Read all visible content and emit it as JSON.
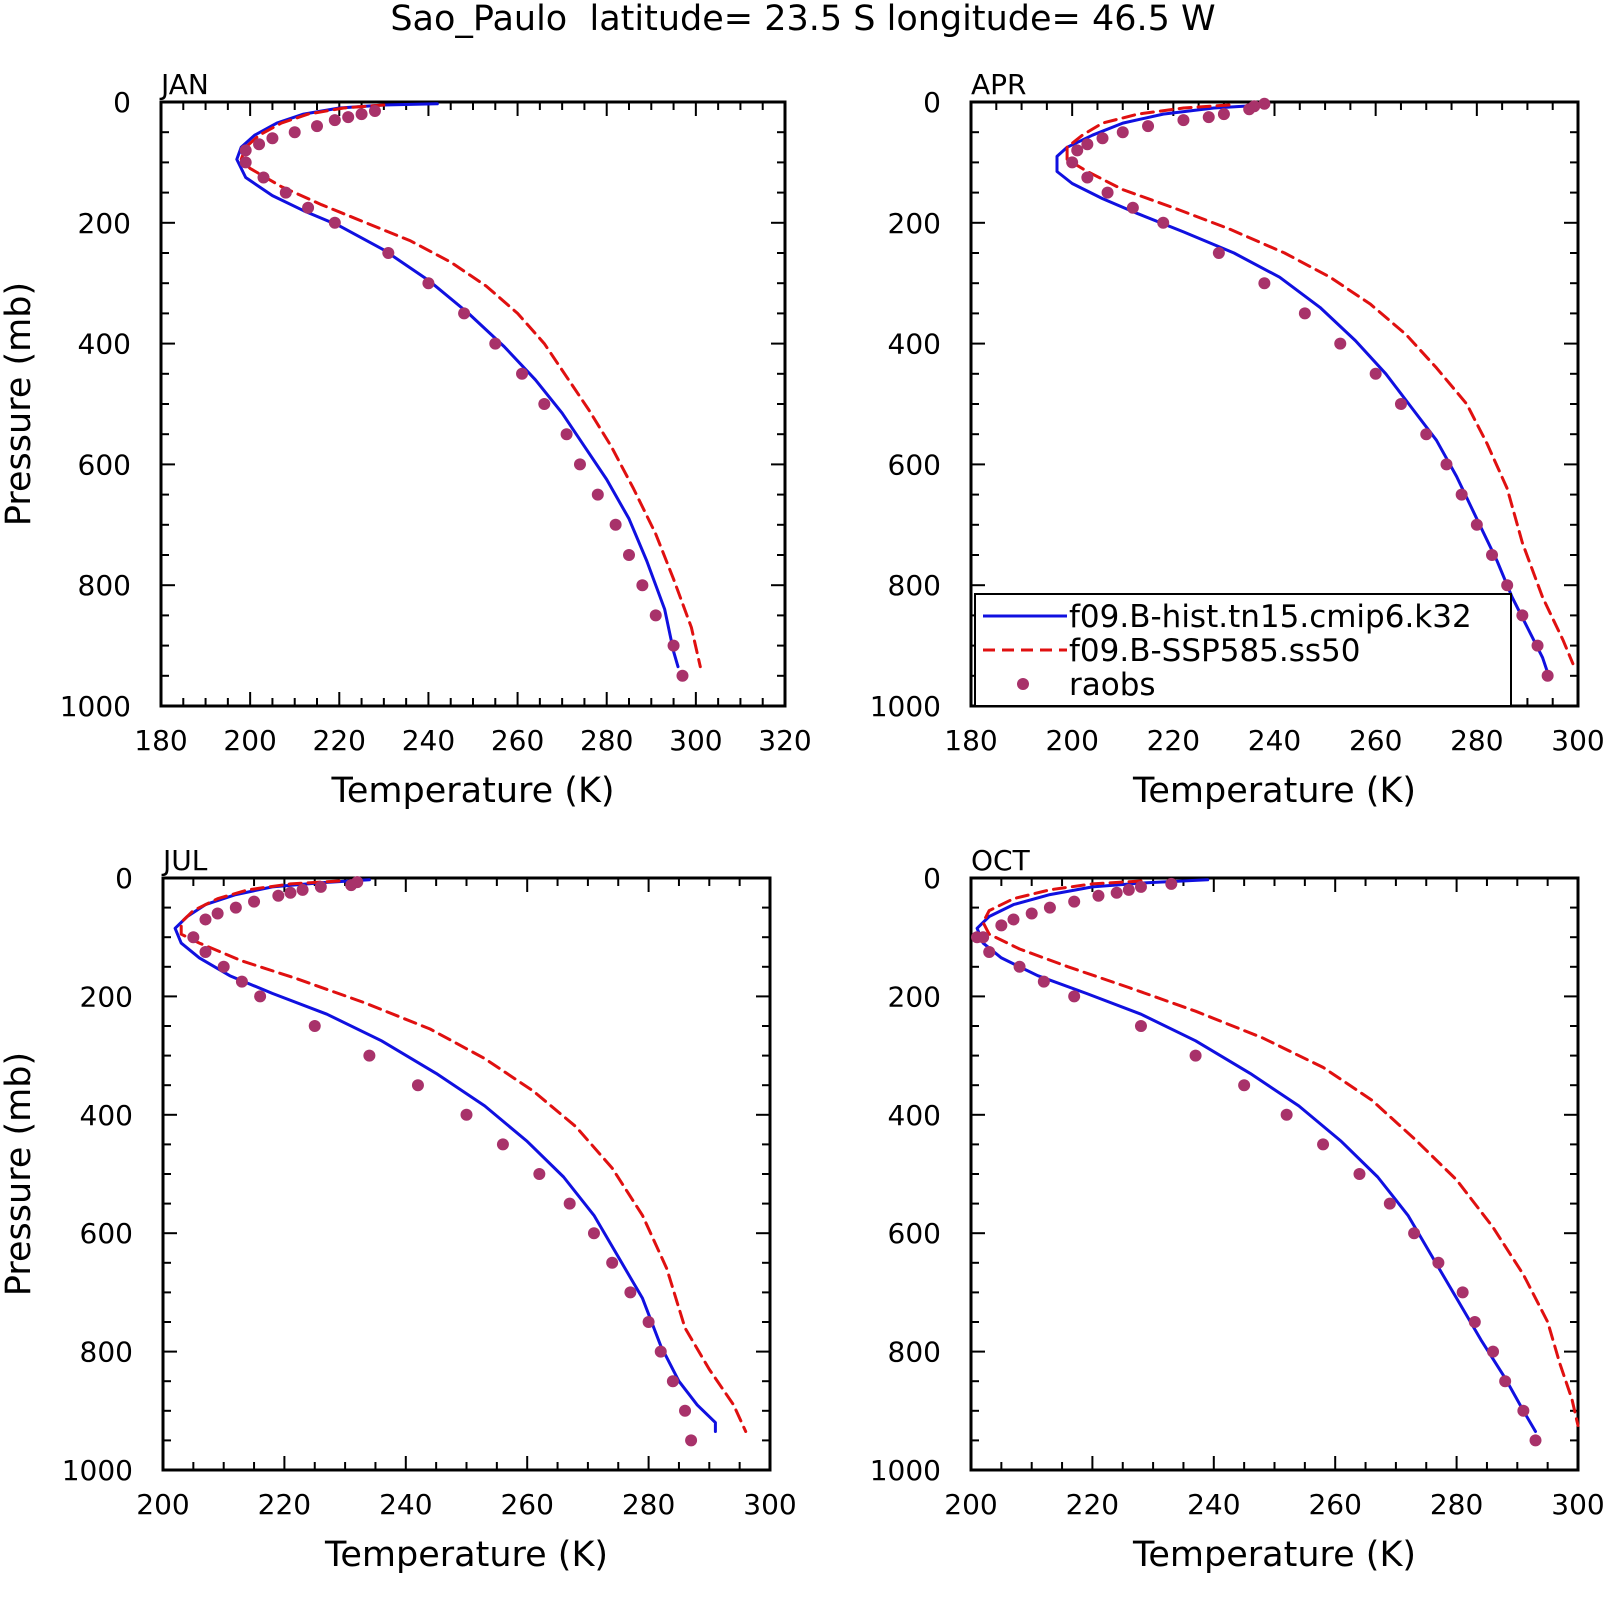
{
  "figure": {
    "title": "Sao_Paulo  latitude= 23.5 S longitude= 46.5 W"
  },
  "colors": {
    "model_hist": "#1010e0",
    "model_ssp": "#e01010",
    "raobs": "#a8326a",
    "axis": "#000000"
  },
  "chart_data": [
    {
      "type": "line",
      "panel_label": "JAN",
      "xlabel": "Temperature (K)",
      "ylabel": "Pressure (mb)",
      "xlim": [
        180,
        320
      ],
      "ylim": [
        1000,
        0
      ],
      "xticks": [
        180,
        200,
        220,
        240,
        260,
        280,
        300,
        320
      ],
      "yticks": [
        0,
        200,
        400,
        600,
        800,
        1000
      ],
      "show_legend": false,
      "series": [
        {
          "name": "f09.B-hist.tn15.cmip6.k32",
          "style": "solid",
          "color": "#1010e0",
          "x": [
            242,
            230,
            220,
            212,
            206,
            201,
            198,
            197,
            199,
            205,
            212,
            220,
            230,
            240,
            249,
            257,
            264,
            270,
            275,
            280,
            285,
            289,
            293,
            295,
            296
          ],
          "y": [
            3,
            5,
            10,
            20,
            35,
            55,
            75,
            95,
            125,
            155,
            180,
            205,
            245,
            295,
            350,
            405,
            460,
            515,
            570,
            625,
            690,
            760,
            840,
            910,
            935
          ]
        },
        {
          "name": "f09.B-SSP585.ss50",
          "style": "dashed",
          "color": "#e01010",
          "x": [
            230,
            221,
            213,
            207,
            202,
            199,
            198,
            200,
            207,
            216,
            226,
            236,
            245,
            253,
            260,
            266,
            271,
            276,
            281,
            286,
            291,
            295,
            299,
            301
          ],
          "y": [
            5,
            10,
            20,
            35,
            55,
            75,
            95,
            110,
            140,
            170,
            200,
            230,
            265,
            305,
            350,
            400,
            455,
            510,
            570,
            640,
            715,
            790,
            870,
            935
          ]
        },
        {
          "name": "raobs",
          "style": "points",
          "color": "#a8326a",
          "x": [
            228,
            225,
            222,
            219,
            215,
            210,
            205,
            202,
            199,
            199,
            203,
            208,
            213,
            219,
            231,
            240,
            248,
            255,
            261,
            266,
            271,
            274,
            278,
            282,
            285,
            288,
            291,
            295,
            297
          ],
          "y": [
            15,
            20,
            25,
            30,
            40,
            50,
            60,
            70,
            80,
            100,
            125,
            150,
            175,
            200,
            250,
            300,
            350,
            400,
            450,
            500,
            550,
            600,
            650,
            700,
            750,
            800,
            850,
            900,
            950
          ]
        }
      ]
    },
    {
      "type": "line",
      "panel_label": "APR",
      "xlabel": "Temperature (K)",
      "ylabel": "",
      "xlim": [
        180,
        300
      ],
      "ylim": [
        1000,
        0
      ],
      "xticks": [
        180,
        200,
        220,
        240,
        260,
        280,
        300
      ],
      "yticks": [
        0,
        200,
        400,
        600,
        800,
        1000
      ],
      "show_legend": true,
      "series": [
        {
          "name": "f09.B-hist.tn15.cmip6.k32",
          "style": "solid",
          "color": "#1010e0",
          "x": [
            238,
            228,
            218,
            210,
            204,
            199,
            197,
            197,
            200,
            206,
            213,
            222,
            232,
            241,
            249,
            256,
            262,
            267,
            272,
            276,
            280,
            284,
            287,
            290,
            293,
            294
          ],
          "y": [
            5,
            10,
            20,
            35,
            55,
            75,
            90,
            115,
            135,
            160,
            185,
            215,
            250,
            290,
            340,
            395,
            450,
            505,
            560,
            620,
            690,
            760,
            820,
            870,
            920,
            945
          ]
        },
        {
          "name": "f09.B-SSP585.ss50",
          "style": "dashed",
          "color": "#e01010",
          "x": [
            231,
            222,
            213,
            206,
            202,
            199,
            199,
            203,
            210,
            220,
            231,
            242,
            251,
            259,
            266,
            272,
            278,
            282,
            286,
            289,
            293,
            297,
            299
          ],
          "y": [
            5,
            10,
            20,
            35,
            55,
            75,
            95,
            115,
            145,
            175,
            210,
            250,
            290,
            335,
            385,
            440,
            500,
            565,
            640,
            730,
            820,
            890,
            930
          ]
        },
        {
          "name": "raobs",
          "style": "points",
          "color": "#a8326a",
          "x": [
            238,
            236,
            235,
            230,
            227,
            222,
            215,
            210,
            206,
            203,
            201,
            200,
            203,
            207,
            212,
            218,
            229,
            238,
            246,
            253,
            260,
            265,
            270,
            274,
            277,
            280,
            283,
            286,
            289,
            292,
            294
          ],
          "y": [
            3,
            7,
            12,
            20,
            25,
            30,
            40,
            50,
            60,
            70,
            80,
            100,
            125,
            150,
            175,
            200,
            250,
            300,
            350,
            400,
            450,
            500,
            550,
            600,
            650,
            700,
            750,
            800,
            850,
            900,
            950
          ]
        }
      ]
    },
    {
      "type": "line",
      "panel_label": "JUL",
      "xlabel": "Temperature (K)",
      "ylabel": "Pressure (mb)",
      "xlim": [
        200,
        300
      ],
      "ylim": [
        1000,
        0
      ],
      "xticks": [
        200,
        220,
        240,
        260,
        280,
        300
      ],
      "yticks": [
        0,
        200,
        400,
        600,
        800,
        1000
      ],
      "show_legend": false,
      "series": [
        {
          "name": "f09.B-hist.tn15.cmip6.k32",
          "style": "solid",
          "color": "#1010e0",
          "x": [
            234,
            226,
            218,
            212,
            207,
            204,
            202,
            203,
            206,
            211,
            218,
            227,
            236,
            245,
            253,
            260,
            266,
            271,
            275,
            279,
            282,
            285,
            288,
            291,
            291
          ],
          "y": [
            3,
            8,
            15,
            28,
            45,
            65,
            85,
            110,
            135,
            165,
            195,
            230,
            275,
            330,
            385,
            445,
            505,
            570,
            640,
            710,
            790,
            850,
            890,
            920,
            935
          ]
        },
        {
          "name": "f09.B-SSP585.ss50",
          "style": "dashed",
          "color": "#e01010",
          "x": [
            229,
            221,
            214,
            209,
            205,
            203,
            203,
            206,
            213,
            222,
            233,
            244,
            253,
            261,
            268,
            274,
            279,
            283,
            286,
            290,
            294,
            296
          ],
          "y": [
            5,
            10,
            20,
            35,
            55,
            75,
            95,
            110,
            140,
            170,
            210,
            255,
            305,
            360,
            420,
            490,
            570,
            660,
            760,
            830,
            890,
            935
          ]
        },
        {
          "name": "raobs",
          "style": "points",
          "color": "#a8326a",
          "x": [
            232,
            231,
            226,
            223,
            221,
            219,
            215,
            212,
            209,
            207,
            205,
            207,
            210,
            213,
            216,
            225,
            234,
            242,
            250,
            256,
            262,
            267,
            271,
            274,
            277,
            280,
            282,
            284,
            286,
            287
          ],
          "y": [
            7,
            12,
            15,
            20,
            25,
            30,
            40,
            50,
            60,
            70,
            100,
            125,
            150,
            175,
            200,
            250,
            300,
            350,
            400,
            450,
            500,
            550,
            600,
            650,
            700,
            750,
            800,
            850,
            900,
            950
          ]
        }
      ]
    },
    {
      "type": "line",
      "panel_label": "OCT",
      "xlabel": "Temperature (K)",
      "ylabel": "",
      "xlim": [
        200,
        300
      ],
      "ylim": [
        1000,
        0
      ],
      "xticks": [
        200,
        220,
        240,
        260,
        280,
        300
      ],
      "yticks": [
        0,
        200,
        400,
        600,
        800,
        1000
      ],
      "show_legend": false,
      "series": [
        {
          "name": "f09.B-hist.tn15.cmip6.k32",
          "style": "solid",
          "color": "#1010e0",
          "x": [
            239,
            229,
            220,
            213,
            207,
            203,
            201,
            202,
            205,
            211,
            219,
            228,
            237,
            246,
            254,
            261,
            267,
            272,
            276,
            280,
            284,
            288,
            291,
            293
          ],
          "y": [
            3,
            8,
            15,
            28,
            45,
            65,
            85,
            110,
            135,
            165,
            195,
            230,
            275,
            330,
            385,
            445,
            505,
            570,
            640,
            710,
            780,
            845,
            900,
            935
          ]
        },
        {
          "name": "f09.B-SSP585.ss50",
          "style": "dashed",
          "color": "#e01010",
          "x": [
            228,
            220,
            213,
            207,
            203,
            202,
            203,
            208,
            216,
            226,
            237,
            248,
            258,
            266,
            273,
            280,
            286,
            291,
            295,
            297,
            299,
            300
          ],
          "y": [
            5,
            10,
            20,
            35,
            55,
            75,
            95,
            120,
            150,
            185,
            225,
            270,
            320,
            375,
            440,
            510,
            590,
            670,
            750,
            820,
            880,
            925
          ]
        },
        {
          "name": "raobs",
          "style": "points",
          "color": "#a8326a",
          "x": [
            233,
            228,
            226,
            224,
            221,
            217,
            213,
            210,
            207,
            205,
            202,
            201,
            203,
            208,
            212,
            217,
            228,
            237,
            245,
            252,
            258,
            264,
            269,
            273,
            277,
            281,
            283,
            286,
            288,
            291,
            293
          ],
          "y": [
            10,
            15,
            20,
            25,
            30,
            40,
            50,
            60,
            70,
            80,
            100,
            100,
            125,
            150,
            175,
            200,
            250,
            300,
            350,
            400,
            450,
            500,
            550,
            600,
            650,
            700,
            750,
            800,
            850,
            900,
            950
          ]
        }
      ]
    }
  ]
}
